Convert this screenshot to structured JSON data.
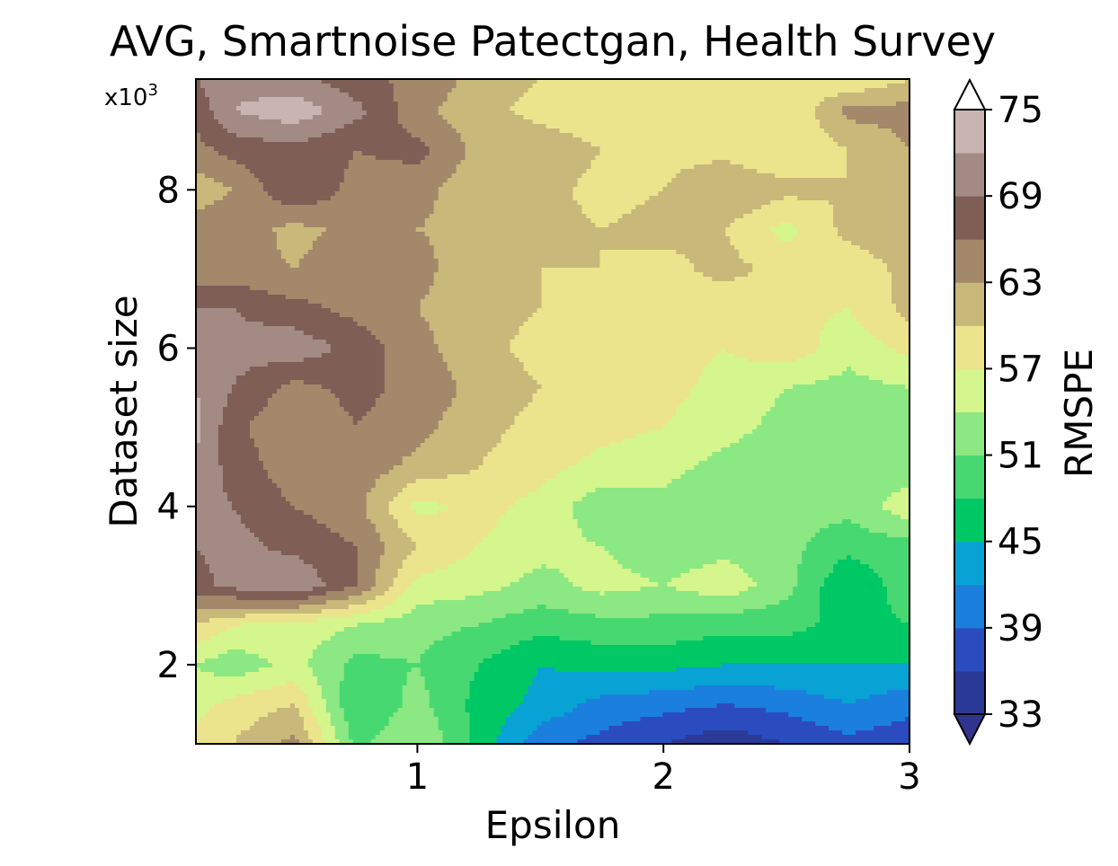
{
  "chart_data": {
    "type": "heatmap",
    "title": "AVG, Smartnoise Patectgan, Health Survey",
    "xlabel": "Epsilon",
    "ylabel": "Dataset size",
    "y_multiplier_label": "x10",
    "y_multiplier_exp": "3",
    "xlim": [
      0.1,
      3.0
    ],
    "ylim": [
      1.0,
      9.4
    ],
    "x_ticks": [
      1,
      2,
      3
    ],
    "x_tick_labels": [
      "1",
      "2",
      "3"
    ],
    "y_ticks": [
      2,
      4,
      6,
      8
    ],
    "y_tick_labels": [
      "2",
      "4",
      "6",
      "8"
    ],
    "x": [
      0.1,
      0.25,
      0.5,
      0.75,
      1.0,
      1.25,
      1.5,
      1.75,
      2.0,
      2.25,
      2.5,
      2.75,
      3.0
    ],
    "y": [
      1.0,
      1.5,
      2.0,
      2.5,
      3.0,
      3.5,
      4.0,
      4.5,
      5.0,
      5.5,
      6.0,
      6.5,
      7.0,
      7.5,
      8.0,
      8.5,
      9.0,
      9.4
    ],
    "z": [
      [
        58,
        60,
        64,
        50,
        54,
        47,
        40,
        38,
        36,
        34,
        36,
        38,
        37
      ],
      [
        56,
        58,
        60,
        48,
        52,
        47,
        44,
        41,
        40,
        39,
        40,
        42,
        40
      ],
      [
        54,
        52,
        55,
        50,
        51,
        48,
        45,
        46,
        46,
        45,
        45,
        45,
        45
      ],
      [
        60,
        57,
        56,
        54,
        52,
        51,
        49,
        50,
        50,
        49,
        49,
        47,
        48
      ],
      [
        68,
        70,
        72,
        66,
        56,
        55,
        53,
        55,
        54,
        56,
        52,
        45,
        50
      ],
      [
        69,
        70,
        68,
        66,
        60,
        57,
        55,
        54,
        52,
        53,
        52,
        49,
        50
      ],
      [
        70,
        69,
        66,
        64,
        56,
        58,
        56,
        52,
        53,
        51,
        52,
        52,
        56
      ],
      [
        71,
        68,
        64,
        65,
        62,
        60,
        58,
        56,
        55,
        53,
        52,
        51,
        52
      ],
      [
        73,
        67,
        63,
        66,
        64,
        61,
        59,
        58,
        57,
        55,
        53,
        52,
        52
      ],
      [
        72,
        69,
        65,
        67,
        65,
        62,
        60,
        57,
        58,
        56,
        54,
        53,
        54
      ],
      [
        71,
        70,
        71,
        68,
        64,
        61,
        59,
        58,
        58,
        57,
        59,
        55,
        58
      ],
      [
        69,
        69,
        67,
        65,
        63,
        61,
        60,
        59,
        59,
        58,
        58,
        57,
        61
      ],
      [
        64,
        64,
        63,
        65,
        64,
        61,
        60,
        60,
        59,
        61,
        59,
        58,
        61
      ],
      [
        65,
        65,
        62,
        64,
        63,
        62,
        61,
        60,
        61,
        60,
        56,
        61,
        62
      ],
      [
        61,
        63,
        69,
        65,
        64,
        61,
        61,
        59,
        60,
        63,
        61,
        60,
        61
      ],
      [
        65,
        67,
        68,
        66,
        67,
        62,
        62,
        60,
        59,
        59,
        57,
        60,
        63
      ],
      [
        67,
        72,
        74,
        70,
        64,
        61,
        59,
        58,
        60,
        58,
        57,
        64,
        64
      ],
      [
        69,
        71,
        70,
        67,
        65,
        62,
        60,
        59,
        58,
        60,
        58,
        57,
        60
      ]
    ],
    "levels": [
      33,
      36,
      39,
      42,
      45,
      48,
      51,
      54,
      57,
      60,
      63,
      66,
      69,
      72,
      75
    ],
    "colors": [
      "#2b3a96",
      "#2b4cbf",
      "#1a7fdd",
      "#08a3d4",
      "#00c864",
      "#48d872",
      "#8ce882",
      "#d4f68c",
      "#ece48c",
      "#c8b87a",
      "#a3886a",
      "#7f5e56",
      "#a48a84",
      "#c8b4b0",
      "#ede4e2"
    ],
    "under_color": "#30348c",
    "over_color": "#ffffff",
    "colorbar": {
      "label": "RMSPE",
      "ticks": [
        33,
        39,
        45,
        51,
        57,
        63,
        69,
        75
      ],
      "tick_labels": [
        "33",
        "39",
        "45",
        "51",
        "57",
        "63",
        "69",
        "75"
      ],
      "extend": "both",
      "placement": "right"
    }
  }
}
